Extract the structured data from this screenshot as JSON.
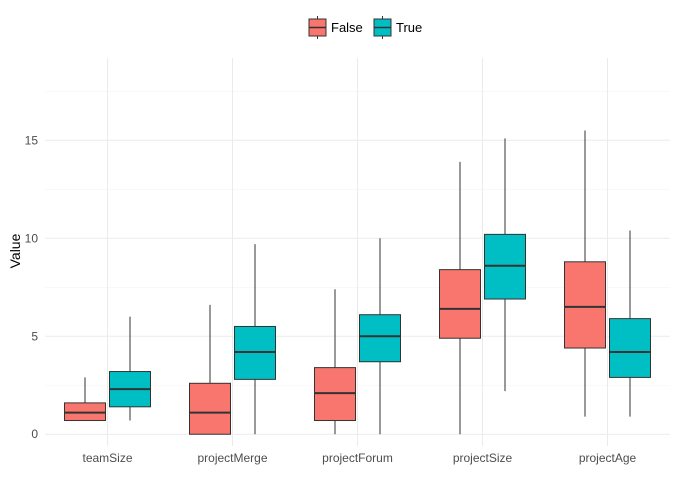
{
  "chart_data": {
    "type": "boxplot",
    "title": "",
    "xlabel": "",
    "ylabel": "Value",
    "ylim": [
      -0.6,
      19.2
    ],
    "yticks": [
      0,
      5,
      10,
      15
    ],
    "categories": [
      "teamSize",
      "projectMerge",
      "projectForum",
      "projectSize",
      "projectAge"
    ],
    "legend": {
      "position": "top",
      "entries": [
        "False",
        "True"
      ]
    },
    "grid": true,
    "series": [
      {
        "name": "False",
        "color": "#F8766D",
        "boxes": [
          {
            "min": 0.7,
            "q1": 0.7,
            "median": 1.1,
            "q3": 1.6,
            "max": 2.9
          },
          {
            "min": 0.0,
            "q1": 0.0,
            "median": 1.1,
            "q3": 2.6,
            "max": 6.6
          },
          {
            "min": 0.0,
            "q1": 0.7,
            "median": 2.1,
            "q3": 3.4,
            "max": 7.4
          },
          {
            "min": 0.0,
            "q1": 4.9,
            "median": 6.4,
            "q3": 8.4,
            "max": 13.9
          },
          {
            "min": 0.9,
            "q1": 4.4,
            "median": 6.5,
            "q3": 8.8,
            "max": 15.5
          }
        ]
      },
      {
        "name": "True",
        "color": "#00BFC4",
        "boxes": [
          {
            "min": 0.7,
            "q1": 1.4,
            "median": 2.3,
            "q3": 3.2,
            "max": 6.0
          },
          {
            "min": 0.0,
            "q1": 2.8,
            "median": 4.2,
            "q3": 5.5,
            "max": 9.7
          },
          {
            "min": 0.0,
            "q1": 3.7,
            "median": 5.0,
            "q3": 6.1,
            "max": 10.0
          },
          {
            "min": 2.2,
            "q1": 6.9,
            "median": 8.6,
            "q3": 10.2,
            "max": 15.1
          },
          {
            "min": 0.9,
            "q1": 2.9,
            "median": 4.2,
            "q3": 5.9,
            "max": 10.4
          }
        ]
      }
    ]
  }
}
